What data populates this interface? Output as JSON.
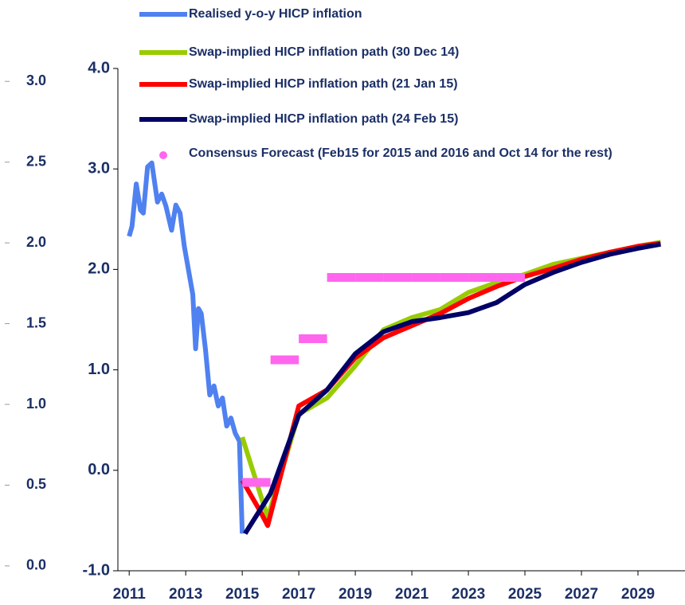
{
  "chart_data": {
    "type": "line",
    "xlim": [
      2010.6,
      2030.1
    ],
    "xticks": [
      2011,
      2013,
      2015,
      2017,
      2019,
      2021,
      2023,
      2025,
      2027,
      2029
    ],
    "ylim": [
      -1.0,
      4.0
    ],
    "yticks": [
      {
        "value": -1,
        "label": "-1.0"
      },
      {
        "value": 0,
        "label": "0.0"
      },
      {
        "value": 1,
        "label": "1.0"
      },
      {
        "value": 2,
        "label": "2.0"
      },
      {
        "value": 3,
        "label": "3.0"
      },
      {
        "value": 4,
        "label": "4.0"
      }
    ],
    "y2lim": [
      -0.03,
      3.08
    ],
    "y2ticks": [
      {
        "value": 0,
        "label": "0.0"
      },
      {
        "value": 0.5,
        "label": "0.5"
      },
      {
        "value": 1,
        "label": "1.0"
      },
      {
        "value": 1.5,
        "label": "1.5"
      },
      {
        "value": 2,
        "label": "2.0"
      },
      {
        "value": 2.5,
        "label": "2.5"
      },
      {
        "value": 3,
        "label": "3.0"
      }
    ],
    "series": [
      {
        "name": "Realised y-o-y HICP inflation",
        "color": "#4f81f0",
        "style": "line",
        "x": [
          2011.0,
          2011.1,
          2011.25,
          2011.4,
          2011.5,
          2011.65,
          2011.8,
          2012.0,
          2012.15,
          2012.3,
          2012.5,
          2012.65,
          2012.8,
          2012.95,
          2013.1,
          2013.25,
          2013.35,
          2013.45,
          2013.55,
          2013.7,
          2013.85,
          2014.0,
          2014.15,
          2014.3,
          2014.45,
          2014.6,
          2014.75,
          2014.9,
          2015.0
        ],
        "values": [
          2.33,
          2.43,
          2.85,
          2.59,
          2.56,
          3.02,
          3.06,
          2.67,
          2.75,
          2.63,
          2.39,
          2.64,
          2.56,
          2.23,
          1.99,
          1.75,
          1.21,
          1.61,
          1.56,
          1.2,
          0.75,
          0.84,
          0.64,
          0.72,
          0.44,
          0.52,
          0.37,
          0.29,
          -0.63
        ]
      },
      {
        "name": "Swap-implied HICP inflation path (30 Dec 14)",
        "color": "#99cc00",
        "style": "line",
        "x": [
          2015.0,
          2015.9,
          2017.0,
          2018,
          2019,
          2020,
          2021,
          2022,
          2023,
          2024,
          2025,
          2026,
          2027,
          2028,
          2029,
          2029.8
        ],
        "values": [
          0.33,
          -0.47,
          0.56,
          0.72,
          1.04,
          1.4,
          1.52,
          1.6,
          1.77,
          1.87,
          1.95,
          2.05,
          2.11,
          2.17,
          2.23,
          2.27
        ]
      },
      {
        "name": "Swap-implied HICP inflation path (21 Jan 15)",
        "color": "#ff0000",
        "style": "line",
        "x": [
          2015.0,
          2015.6,
          2015.9,
          2017.0,
          2018,
          2019,
          2020,
          2021,
          2022,
          2023,
          2024,
          2025,
          2026,
          2027,
          2028,
          2029,
          2029.8
        ],
        "values": [
          -0.1,
          -0.39,
          -0.55,
          0.64,
          0.8,
          1.12,
          1.32,
          1.44,
          1.56,
          1.71,
          1.83,
          1.93,
          2.01,
          2.1,
          2.17,
          2.23,
          2.26
        ]
      },
      {
        "name": "Swap-implied HICP inflation path (24 Feb 15)",
        "color": "#000066",
        "style": "line",
        "x": [
          2015.1,
          2016,
          2017.0,
          2018,
          2019,
          2020,
          2021,
          2022,
          2023,
          2024,
          2025,
          2026,
          2027,
          2028,
          2029,
          2029.8
        ],
        "values": [
          -0.63,
          -0.23,
          0.55,
          0.8,
          1.16,
          1.38,
          1.48,
          1.52,
          1.57,
          1.67,
          1.85,
          1.97,
          2.07,
          2.15,
          2.21,
          2.25
        ]
      },
      {
        "name": "Consensus Forecast (Feb15 for 2015 and 2016 and Oct 14 for the rest)",
        "color": "#ff66ee",
        "style": "dash",
        "x": [
          2015.5,
          2016.5,
          2017.5,
          2018.5,
          2019.5,
          2020.5,
          2021.5,
          2022.5,
          2023.5,
          2024.5
        ],
        "values": [
          -0.12,
          1.1,
          1.31,
          1.92,
          1.92,
          1.92,
          1.92,
          1.92,
          1.92,
          1.92
        ]
      }
    ]
  }
}
